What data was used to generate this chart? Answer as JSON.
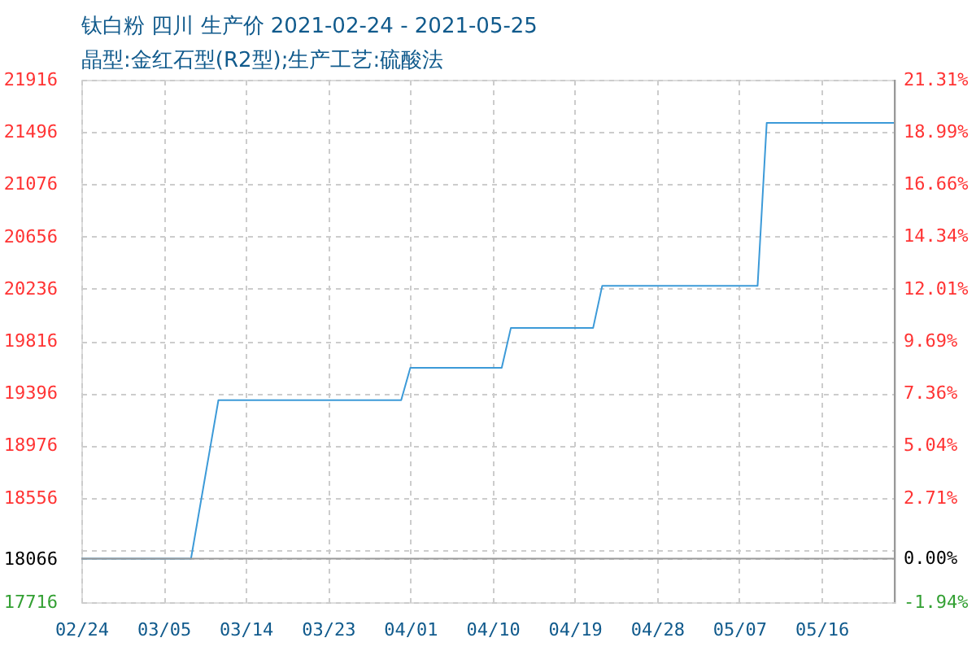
{
  "chart_data": {
    "type": "line",
    "title": "钛白粉 四川 生产价 2021-02-24 - 2021-05-25",
    "subtitle": "晶型:金红石型(R2型);生产工艺:硫酸法",
    "x": [
      "2021-02-24",
      "2021-03-08",
      "2021-03-11",
      "2021-03-31",
      "2021-04-01",
      "2021-04-11",
      "2021-04-12",
      "2021-04-21",
      "2021-04-22",
      "2021-05-09",
      "2021-05-10",
      "2021-05-24"
    ],
    "series": [
      {
        "color": "#3c9ad8",
        "values": [
          18066,
          18066,
          19340,
          19340,
          19600,
          19600,
          19920,
          19920,
          20260,
          20260,
          21570,
          21570
        ]
      }
    ],
    "xlim": [
      "2021-02-24",
      "2021-05-24"
    ],
    "xticks": [
      {
        "value": "2021-02-24",
        "label": "02/24"
      },
      {
        "value": "2021-03-05",
        "label": "03/05"
      },
      {
        "value": "2021-03-14",
        "label": "03/14"
      },
      {
        "value": "2021-03-23",
        "label": "03/23"
      },
      {
        "value": "2021-04-01",
        "label": "04/01"
      },
      {
        "value": "2021-04-10",
        "label": "04/10"
      },
      {
        "value": "2021-04-19",
        "label": "04/19"
      },
      {
        "value": "2021-04-28",
        "label": "04/28"
      },
      {
        "value": "2021-05-07",
        "label": "05/07"
      },
      {
        "value": "2021-05-16",
        "label": "05/16"
      }
    ],
    "ylim": [
      17716,
      21916
    ],
    "yticks": [
      21916,
      21496,
      21076,
      20656,
      20236,
      19816,
      19396,
      18976,
      18556,
      {
        "value": 18136,
        "label": null
      },
      18066,
      17716
    ],
    "y2lim": [
      -1.94,
      21.31
    ],
    "y2ticks": [
      {
        "value": 21.31,
        "label": "21.31%"
      },
      {
        "value": 18.99,
        "label": "18.99%"
      },
      {
        "value": 16.66,
        "label": "16.66%"
      },
      {
        "value": 14.34,
        "label": "14.34%"
      },
      {
        "value": 12.01,
        "label": "12.01%"
      },
      {
        "value": 9.69,
        "label": "9.69%"
      },
      {
        "value": 7.36,
        "label": "7.36%"
      },
      {
        "value": 5.04,
        "label": "5.04%"
      },
      {
        "value": 2.71,
        "label": "2.71%"
      },
      {
        "value": 0,
        "label": "0.00%"
      },
      {
        "value": -1.94,
        "label": "-1.94%"
      }
    ],
    "ref_lines": [
      {
        "axis": "y",
        "value": 18066,
        "color": "#999999"
      }
    ],
    "grid": true,
    "line_style": "solid"
  }
}
